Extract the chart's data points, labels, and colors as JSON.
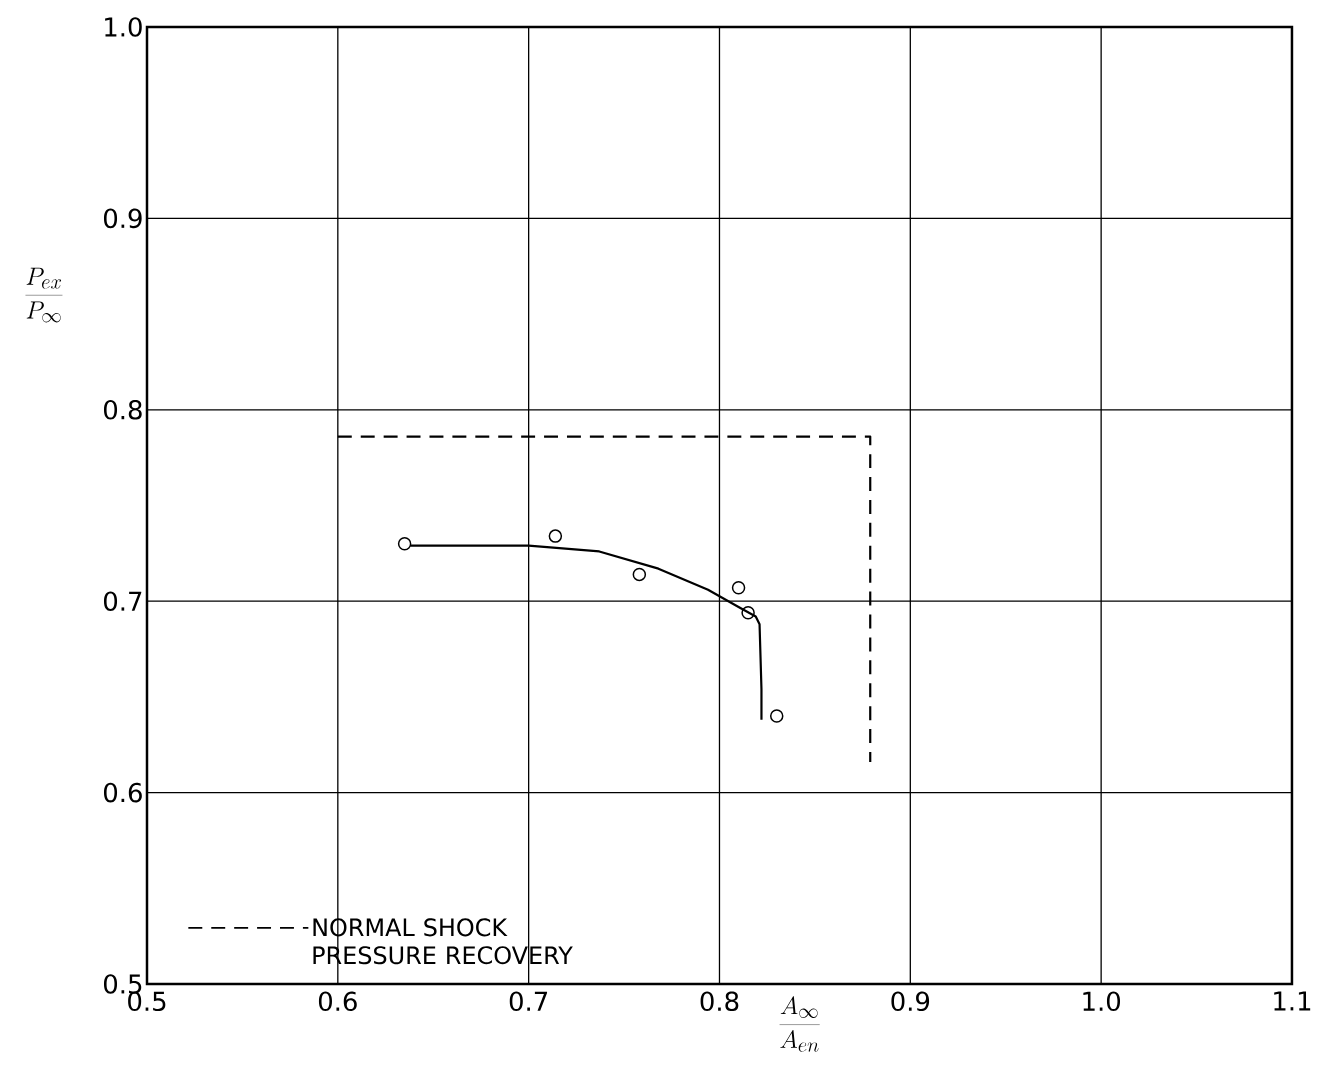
{
  "chart_data": {
    "type": "scatter",
    "xlabel": "\\frac{A_{\\infty}}{A_{en}}",
    "ylabel": "\\frac{P_{ex}}{P_{\\infty}}",
    "xlim": [
      0.5,
      1.1
    ],
    "ylim": [
      0.5,
      1.0
    ],
    "xticks": [
      0.5,
      0.6,
      0.7,
      0.8,
      0.9,
      {
        "value": 1.0,
        "label": "1.0"
      },
      1.1
    ],
    "yticks": [
      0.5,
      0.6,
      0.7,
      0.8,
      0.9,
      {
        "value": 1.0,
        "label": "1.0"
      }
    ],
    "grid": true,
    "legend": "bottom left",
    "series": [
      {
        "color": "#000000",
        "marker": "circle",
        "x": [
          0.635,
          0.714,
          0.758,
          0.81,
          0.815,
          0.83
        ],
        "values": [
          0.73,
          0.734,
          0.714,
          0.707,
          0.694,
          0.64
        ]
      },
      {
        "type": "line",
        "color": "#000000",
        "line_style": "solid",
        "marker": "none",
        "x": [
          0.638,
          0.7,
          0.737,
          0.768,
          0.794,
          0.81,
          0.819,
          0.821,
          0.822,
          0.822
        ],
        "values": [
          0.729,
          0.729,
          0.726,
          0.717,
          0.706,
          0.697,
          0.692,
          0.688,
          0.654,
          0.638
        ]
      },
      {
        "type": "line",
        "name": "NORMAL SHOCK PRESSURE RECOVERY",
        "color": "#000000",
        "line_style": "dashed",
        "marker": "none",
        "x": [
          0.6,
          0.879,
          0.879
        ],
        "values": [
          0.786,
          0.786,
          0.616
        ]
      }
    ]
  }
}
